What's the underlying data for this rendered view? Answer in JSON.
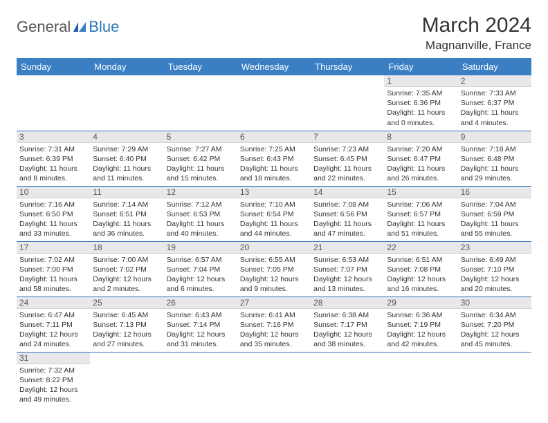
{
  "logo": {
    "general": "General",
    "blue": "Blue"
  },
  "title": "March 2024",
  "location": "Magnanville, France",
  "colors": {
    "header_bg": "#3a7fc4",
    "header_text": "#ffffff",
    "daynum_bg": "#e8e8ea",
    "accent": "#2e75b6",
    "body_text": "#333333",
    "logo_gray": "#555555"
  },
  "weekdays": [
    "Sunday",
    "Monday",
    "Tuesday",
    "Wednesday",
    "Thursday",
    "Friday",
    "Saturday"
  ],
  "weeks": [
    [
      null,
      null,
      null,
      null,
      null,
      {
        "n": "1",
        "sr": "Sunrise: 7:35 AM",
        "ss": "Sunset: 6:36 PM",
        "d1": "Daylight: 11 hours",
        "d2": "and 0 minutes."
      },
      {
        "n": "2",
        "sr": "Sunrise: 7:33 AM",
        "ss": "Sunset: 6:37 PM",
        "d1": "Daylight: 11 hours",
        "d2": "and 4 minutes."
      }
    ],
    [
      {
        "n": "3",
        "sr": "Sunrise: 7:31 AM",
        "ss": "Sunset: 6:39 PM",
        "d1": "Daylight: 11 hours",
        "d2": "and 8 minutes."
      },
      {
        "n": "4",
        "sr": "Sunrise: 7:29 AM",
        "ss": "Sunset: 6:40 PM",
        "d1": "Daylight: 11 hours",
        "d2": "and 11 minutes."
      },
      {
        "n": "5",
        "sr": "Sunrise: 7:27 AM",
        "ss": "Sunset: 6:42 PM",
        "d1": "Daylight: 11 hours",
        "d2": "and 15 minutes."
      },
      {
        "n": "6",
        "sr": "Sunrise: 7:25 AM",
        "ss": "Sunset: 6:43 PM",
        "d1": "Daylight: 11 hours",
        "d2": "and 18 minutes."
      },
      {
        "n": "7",
        "sr": "Sunrise: 7:23 AM",
        "ss": "Sunset: 6:45 PM",
        "d1": "Daylight: 11 hours",
        "d2": "and 22 minutes."
      },
      {
        "n": "8",
        "sr": "Sunrise: 7:20 AM",
        "ss": "Sunset: 6:47 PM",
        "d1": "Daylight: 11 hours",
        "d2": "and 26 minutes."
      },
      {
        "n": "9",
        "sr": "Sunrise: 7:18 AM",
        "ss": "Sunset: 6:48 PM",
        "d1": "Daylight: 11 hours",
        "d2": "and 29 minutes."
      }
    ],
    [
      {
        "n": "10",
        "sr": "Sunrise: 7:16 AM",
        "ss": "Sunset: 6:50 PM",
        "d1": "Daylight: 11 hours",
        "d2": "and 33 minutes."
      },
      {
        "n": "11",
        "sr": "Sunrise: 7:14 AM",
        "ss": "Sunset: 6:51 PM",
        "d1": "Daylight: 11 hours",
        "d2": "and 36 minutes."
      },
      {
        "n": "12",
        "sr": "Sunrise: 7:12 AM",
        "ss": "Sunset: 6:53 PM",
        "d1": "Daylight: 11 hours",
        "d2": "and 40 minutes."
      },
      {
        "n": "13",
        "sr": "Sunrise: 7:10 AM",
        "ss": "Sunset: 6:54 PM",
        "d1": "Daylight: 11 hours",
        "d2": "and 44 minutes."
      },
      {
        "n": "14",
        "sr": "Sunrise: 7:08 AM",
        "ss": "Sunset: 6:56 PM",
        "d1": "Daylight: 11 hours",
        "d2": "and 47 minutes."
      },
      {
        "n": "15",
        "sr": "Sunrise: 7:06 AM",
        "ss": "Sunset: 6:57 PM",
        "d1": "Daylight: 11 hours",
        "d2": "and 51 minutes."
      },
      {
        "n": "16",
        "sr": "Sunrise: 7:04 AM",
        "ss": "Sunset: 6:59 PM",
        "d1": "Daylight: 11 hours",
        "d2": "and 55 minutes."
      }
    ],
    [
      {
        "n": "17",
        "sr": "Sunrise: 7:02 AM",
        "ss": "Sunset: 7:00 PM",
        "d1": "Daylight: 11 hours",
        "d2": "and 58 minutes."
      },
      {
        "n": "18",
        "sr": "Sunrise: 7:00 AM",
        "ss": "Sunset: 7:02 PM",
        "d1": "Daylight: 12 hours",
        "d2": "and 2 minutes."
      },
      {
        "n": "19",
        "sr": "Sunrise: 6:57 AM",
        "ss": "Sunset: 7:04 PM",
        "d1": "Daylight: 12 hours",
        "d2": "and 6 minutes."
      },
      {
        "n": "20",
        "sr": "Sunrise: 6:55 AM",
        "ss": "Sunset: 7:05 PM",
        "d1": "Daylight: 12 hours",
        "d2": "and 9 minutes."
      },
      {
        "n": "21",
        "sr": "Sunrise: 6:53 AM",
        "ss": "Sunset: 7:07 PM",
        "d1": "Daylight: 12 hours",
        "d2": "and 13 minutes."
      },
      {
        "n": "22",
        "sr": "Sunrise: 6:51 AM",
        "ss": "Sunset: 7:08 PM",
        "d1": "Daylight: 12 hours",
        "d2": "and 16 minutes."
      },
      {
        "n": "23",
        "sr": "Sunrise: 6:49 AM",
        "ss": "Sunset: 7:10 PM",
        "d1": "Daylight: 12 hours",
        "d2": "and 20 minutes."
      }
    ],
    [
      {
        "n": "24",
        "sr": "Sunrise: 6:47 AM",
        "ss": "Sunset: 7:11 PM",
        "d1": "Daylight: 12 hours",
        "d2": "and 24 minutes."
      },
      {
        "n": "25",
        "sr": "Sunrise: 6:45 AM",
        "ss": "Sunset: 7:13 PM",
        "d1": "Daylight: 12 hours",
        "d2": "and 27 minutes."
      },
      {
        "n": "26",
        "sr": "Sunrise: 6:43 AM",
        "ss": "Sunset: 7:14 PM",
        "d1": "Daylight: 12 hours",
        "d2": "and 31 minutes."
      },
      {
        "n": "27",
        "sr": "Sunrise: 6:41 AM",
        "ss": "Sunset: 7:16 PM",
        "d1": "Daylight: 12 hours",
        "d2": "and 35 minutes."
      },
      {
        "n": "28",
        "sr": "Sunrise: 6:38 AM",
        "ss": "Sunset: 7:17 PM",
        "d1": "Daylight: 12 hours",
        "d2": "and 38 minutes."
      },
      {
        "n": "29",
        "sr": "Sunrise: 6:36 AM",
        "ss": "Sunset: 7:19 PM",
        "d1": "Daylight: 12 hours",
        "d2": "and 42 minutes."
      },
      {
        "n": "30",
        "sr": "Sunrise: 6:34 AM",
        "ss": "Sunset: 7:20 PM",
        "d1": "Daylight: 12 hours",
        "d2": "and 45 minutes."
      }
    ],
    [
      {
        "n": "31",
        "sr": "Sunrise: 7:32 AM",
        "ss": "Sunset: 8:22 PM",
        "d1": "Daylight: 12 hours",
        "d2": "and 49 minutes."
      },
      null,
      null,
      null,
      null,
      null,
      null
    ]
  ]
}
